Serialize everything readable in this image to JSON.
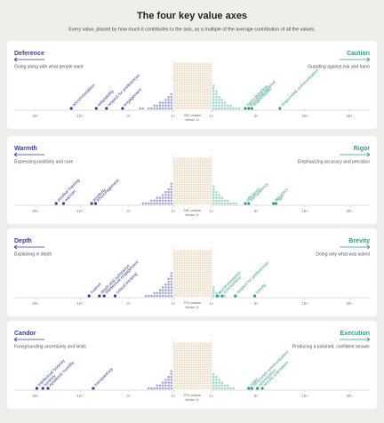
{
  "chart_data": {
    "type": "value-axes",
    "title": "The four key value axes",
    "subtitle": "Every value, placed by how much it contributes to the axis, as a multiple of the average contribution of all the values.",
    "axis_ticks": [
      {
        "value": 30,
        "label": "30×"
      },
      {
        "value": 10,
        "label": "10×"
      },
      {
        "value": 3,
        "label": "3×"
      },
      {
        "value": 1,
        "label": "1×"
      }
    ],
    "left_color": "#3b3f8f",
    "right_color": "#3a9a86",
    "panels": [
      {
        "left": {
          "name": "Deference",
          "description": "Going along with what people want"
        },
        "right": {
          "name": "Caution",
          "description": "Guarding against risk and harm"
        },
        "center_label": [
          "250 values",
          "below 1×"
        ],
        "left_points": [
          {
            "label": "accommodation",
            "value": 12.4
          },
          {
            "label": "adaptability",
            "value": 6.7
          },
          {
            "label": "respect for preferences",
            "value": 5.2
          },
          {
            "label": "engagement",
            "value": 3.5
          }
        ],
        "right_points": [
          {
            "label": "harm reduction",
            "value": 2.3
          },
          {
            "label": "emotional balance",
            "value": 2.5
          },
          {
            "label": "responsibility",
            "value": 2.7
          },
          {
            "label": "responsible communication",
            "value": 5.4
          }
        ],
        "left_stack": [
          6,
          5,
          4,
          3,
          3,
          2,
          2,
          1,
          1,
          0,
          1,
          1
        ],
        "right_stack": [
          9,
          7,
          5,
          4,
          3,
          2,
          2,
          1,
          1,
          1
        ]
      },
      {
        "left": {
          "name": "Warmth",
          "description": "Expressing positivity and care"
        },
        "right": {
          "name": "Rigor",
          "description": "Emphasizing accuracy and precision"
        },
        "center_label": [
          "280 values",
          "below 1×"
        ],
        "left_points": [
          {
            "label": "positive framing",
            "value": 18
          },
          {
            "label": "warmth",
            "value": 15
          },
          {
            "label": "positivity",
            "value": 7.5
          },
          {
            "label": "encouragement",
            "value": 6.8
          }
        ],
        "right_points": [
          {
            "label": "efficiency",
            "value": 2.3
          },
          {
            "label": "transparency",
            "value": 2.5
          },
          {
            "label": "accuracy",
            "value": 4.6
          },
          {
            "label": "rigor",
            "value": 4.9
          }
        ],
        "left_stack": [
          8,
          6,
          5,
          4,
          3,
          3,
          2,
          2,
          1,
          1,
          1
        ],
        "right_stack": [
          7,
          5,
          4,
          3,
          2,
          2,
          1,
          1,
          1
        ]
      },
      {
        "left": {
          "name": "Depth",
          "description": "Explaining in depth"
        },
        "right": {
          "name": "Brevity",
          "description": "Doing only what was asked"
        },
        "center_label": [
          "270 values",
          "below 1×"
        ],
        "left_points": [
          {
            "label": "nuance",
            "value": 8
          },
          {
            "label": "depth and substance",
            "value": 6.2
          },
          {
            "label": "intellectual engagement",
            "value": 5.5
          },
          {
            "label": "critical thinking",
            "value": 4.2
          }
        ],
        "right_points": [
          {
            "label": "accommodation",
            "value": 1.15
          },
          {
            "label": "conciseness",
            "value": 1.3
          },
          {
            "label": "respect for preferences",
            "value": 1.8
          },
          {
            "label": "brevity",
            "value": 2.9
          }
        ],
        "left_stack": [
          9,
          7,
          5,
          4,
          3,
          2,
          2,
          1,
          1,
          1
        ],
        "right_stack": [
          4,
          2,
          2,
          1,
          1
        ]
      },
      {
        "left": {
          "name": "Candor",
          "description": "Foregrounding uncertainty and limits"
        },
        "right": {
          "name": "Execution",
          "description": "Producing a polished, confident answer"
        },
        "center_label": [
          "270 values",
          "below 1×"
        ],
        "left_points": [
          {
            "label": "intellectual honesty",
            "value": 29
          },
          {
            "label": "honesty",
            "value": 25
          },
          {
            "label": "epistemic humility",
            "value": 22
          },
          {
            "label": "transparency",
            "value": 7.2
          }
        ],
        "right_points": [
          {
            "label": "order",
            "value": 2.5
          },
          {
            "label": "structured communication",
            "value": 2.7
          },
          {
            "label": "optimization",
            "value": 3.1
          },
          {
            "label": "results orientation",
            "value": 3.5
          }
        ],
        "left_stack": [
          7,
          5,
          4,
          3,
          2,
          2,
          1,
          1,
          1
        ],
        "right_stack": [
          6,
          5,
          4,
          3,
          2,
          2,
          1,
          1
        ]
      }
    ]
  }
}
